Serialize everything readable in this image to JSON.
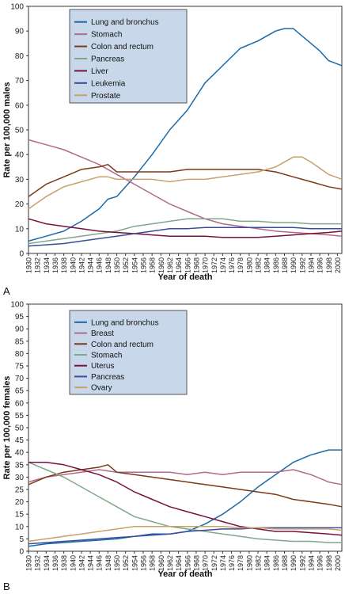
{
  "colors": {
    "legend_bg": "#c8d8ea",
    "axis": "#333333",
    "grid": "none"
  },
  "chart_data": [
    {
      "panel_label": "A",
      "type": "line",
      "xlabel": "Year of death",
      "ylabel": "Rate per 100,000 males",
      "xlim": [
        1930,
        2001
      ],
      "ylim": [
        0,
        100
      ],
      "yticks": [
        0,
        10,
        20,
        30,
        40,
        50,
        60,
        70,
        80,
        90,
        100
      ],
      "xticks": [
        1930,
        1932,
        1934,
        1936,
        1938,
        1940,
        1942,
        1944,
        1946,
        1948,
        1950,
        1952,
        1954,
        1956,
        1958,
        1960,
        1962,
        1964,
        1966,
        1968,
        1970,
        1972,
        1974,
        1976,
        1978,
        1980,
        1982,
        1984,
        1986,
        1988,
        1990,
        1992,
        1994,
        1996,
        1998,
        2000
      ],
      "legend_position": "top-left",
      "series": [
        {
          "name": "Lung and bronchus",
          "color": "#1a6aa8",
          "x": [
            1930,
            1934,
            1938,
            1942,
            1946,
            1948,
            1950,
            1954,
            1958,
            1962,
            1966,
            1970,
            1974,
            1978,
            1982,
            1986,
            1988,
            1990,
            1992,
            1996,
            1998,
            2001
          ],
          "y": [
            5,
            7,
            9,
            13,
            18,
            22,
            23,
            31,
            40,
            50,
            58,
            69,
            76,
            83,
            86,
            90,
            91,
            91,
            88,
            82,
            78,
            76
          ]
        },
        {
          "name": "Stomach",
          "color": "#b06a8c",
          "x": [
            1930,
            1934,
            1938,
            1942,
            1946,
            1950,
            1954,
            1958,
            1962,
            1966,
            1970,
            1974,
            1978,
            1982,
            1986,
            1990,
            1994,
            1998,
            2001
          ],
          "y": [
            46,
            44,
            42,
            39,
            36,
            32,
            28,
            24,
            20,
            17,
            14,
            12,
            11,
            10,
            9,
            8.5,
            8,
            7.5,
            7
          ]
        },
        {
          "name": "Colon and rectum",
          "color": "#7a3a18",
          "x": [
            1930,
            1934,
            1938,
            1942,
            1946,
            1948,
            1950,
            1954,
            1958,
            1962,
            1966,
            1970,
            1974,
            1978,
            1982,
            1986,
            1990,
            1994,
            1998,
            2001
          ],
          "y": [
            23,
            28,
            31,
            34,
            35,
            36,
            33,
            33,
            33,
            33,
            34,
            34,
            34,
            34,
            34,
            33,
            31,
            29,
            27,
            26
          ]
        },
        {
          "name": "Pancreas",
          "color": "#7fa88a",
          "x": [
            1930,
            1934,
            1938,
            1942,
            1946,
            1950,
            1954,
            1958,
            1962,
            1966,
            1970,
            1974,
            1978,
            1982,
            1986,
            1990,
            1994,
            1998,
            2001
          ],
          "y": [
            4,
            5,
            6,
            7,
            8,
            9,
            11,
            12,
            13,
            14,
            14,
            14,
            13,
            13,
            12.5,
            12.5,
            12,
            12,
            12
          ]
        },
        {
          "name": "Liver",
          "color": "#7a1040",
          "x": [
            1930,
            1934,
            1938,
            1942,
            1946,
            1950,
            1954,
            1958,
            1962,
            1966,
            1970,
            1974,
            1978,
            1982,
            1986,
            1990,
            1994,
            1998,
            2001
          ],
          "y": [
            14,
            12,
            11,
            10,
            9,
            8.5,
            8,
            7.5,
            7,
            7,
            7,
            6.5,
            6.5,
            6.5,
            7,
            7.5,
            8,
            8.5,
            9
          ]
        },
        {
          "name": "Leukemia",
          "color": "#3a4c9a",
          "x": [
            1930,
            1934,
            1938,
            1942,
            1946,
            1950,
            1954,
            1958,
            1962,
            1966,
            1970,
            1974,
            1978,
            1982,
            1986,
            1990,
            1994,
            1998,
            2001
          ],
          "y": [
            3,
            3.5,
            4,
            5,
            6,
            7,
            8,
            9,
            10,
            10,
            10.5,
            10.5,
            10.5,
            10.5,
            10.5,
            10.5,
            10,
            10,
            10
          ]
        },
        {
          "name": "Prostate",
          "color": "#c8a06a",
          "x": [
            1930,
            1934,
            1938,
            1940,
            1942,
            1946,
            1948,
            1950,
            1954,
            1958,
            1962,
            1966,
            1970,
            1974,
            1978,
            1982,
            1986,
            1990,
            1992,
            1994,
            1998,
            2001
          ],
          "y": [
            18,
            23,
            27,
            28,
            29,
            31,
            31,
            30,
            30,
            30,
            29,
            30,
            30,
            31,
            32,
            33,
            35,
            39,
            39,
            37,
            32,
            30
          ]
        }
      ]
    },
    {
      "panel_label": "B",
      "type": "line",
      "xlabel": "Year of death",
      "ylabel": "Rate per 100,000 females",
      "xlim": [
        1930,
        2001
      ],
      "ylim": [
        0,
        100
      ],
      "yticks": [
        0,
        5,
        10,
        15,
        20,
        25,
        30,
        35,
        40,
        45,
        50,
        55,
        60,
        65,
        70,
        75,
        80,
        85,
        90,
        95,
        100
      ],
      "xticks": [
        1930,
        1932,
        1934,
        1936,
        1938,
        1940,
        1942,
        1944,
        1946,
        1948,
        1950,
        1952,
        1954,
        1956,
        1958,
        1960,
        1962,
        1964,
        1966,
        1968,
        1970,
        1972,
        1974,
        1976,
        1978,
        1980,
        1982,
        1984,
        1986,
        1988,
        1990,
        1992,
        1994,
        1996,
        1998,
        2000
      ],
      "legend_position": "top-left",
      "series": [
        {
          "name": "Lung and bronchus",
          "color": "#1a6aa8",
          "x": [
            1930,
            1934,
            1938,
            1942,
            1946,
            1950,
            1954,
            1958,
            1962,
            1966,
            1970,
            1974,
            1978,
            1982,
            1986,
            1990,
            1994,
            1998,
            2001
          ],
          "y": [
            2,
            3,
            3.5,
            4,
            4.5,
            5,
            6,
            6.5,
            7,
            8,
            11,
            15,
            20,
            26,
            31,
            36,
            39,
            41,
            41
          ]
        },
        {
          "name": "Breast",
          "color": "#b06a8c",
          "x": [
            1930,
            1934,
            1938,
            1942,
            1946,
            1950,
            1954,
            1958,
            1962,
            1966,
            1970,
            1974,
            1978,
            1982,
            1986,
            1990,
            1994,
            1998,
            2001
          ],
          "y": [
            28,
            30,
            31,
            32,
            33,
            32,
            32,
            32,
            32,
            31,
            32,
            31,
            32,
            32,
            32,
            33,
            31,
            28,
            27
          ]
        },
        {
          "name": "Colon and rectum",
          "color": "#7a3a18",
          "x": [
            1930,
            1934,
            1938,
            1942,
            1946,
            1948,
            1950,
            1954,
            1958,
            1962,
            1966,
            1970,
            1974,
            1978,
            1982,
            1986,
            1990,
            1994,
            1998,
            2001
          ],
          "y": [
            27,
            30,
            32,
            33,
            34,
            35,
            32,
            31,
            30,
            29,
            28,
            27,
            26,
            25,
            24,
            23,
            21,
            20,
            19,
            18
          ]
        },
        {
          "name": "Stomach",
          "color": "#7fa88a",
          "x": [
            1930,
            1934,
            1938,
            1942,
            1946,
            1950,
            1954,
            1958,
            1962,
            1966,
            1970,
            1974,
            1978,
            1982,
            1986,
            1990,
            1994,
            1998,
            2001
          ],
          "y": [
            36,
            33,
            30,
            26,
            22,
            18,
            14,
            12,
            10,
            9,
            8,
            7,
            6,
            5,
            4.5,
            4,
            4,
            3.5,
            3.5
          ]
        },
        {
          "name": "Uterus",
          "color": "#7a1040",
          "x": [
            1930,
            1934,
            1938,
            1942,
            1946,
            1950,
            1954,
            1958,
            1962,
            1966,
            1970,
            1974,
            1978,
            1982,
            1986,
            1990,
            1994,
            1998,
            2001
          ],
          "y": [
            36,
            36,
            35,
            33,
            31,
            28,
            24,
            21,
            18,
            16,
            14,
            12,
            10,
            9,
            8,
            8,
            7.5,
            7,
            6.5
          ]
        },
        {
          "name": "Pancreas",
          "color": "#3a4c9a",
          "x": [
            1930,
            1934,
            1938,
            1942,
            1946,
            1950,
            1954,
            1958,
            1962,
            1966,
            1970,
            1974,
            1978,
            1982,
            1986,
            1990,
            1994,
            1998,
            2001
          ],
          "y": [
            3,
            3.5,
            4,
            4.5,
            5,
            5.5,
            6,
            7,
            7,
            8,
            8.5,
            9,
            9,
            9.5,
            9.5,
            9.5,
            9.5,
            9.5,
            9.5
          ]
        },
        {
          "name": "Ovary",
          "color": "#c8a06a",
          "x": [
            1930,
            1934,
            1938,
            1942,
            1946,
            1950,
            1954,
            1958,
            1962,
            1966,
            1970,
            1974,
            1978,
            1982,
            1986,
            1990,
            1994,
            1998,
            2001
          ],
          "y": [
            4,
            5,
            6,
            7,
            8,
            9,
            10,
            10,
            10,
            10,
            10,
            10,
            9.5,
            9.5,
            9,
            9,
            9,
            9,
            8.5
          ]
        }
      ]
    }
  ]
}
